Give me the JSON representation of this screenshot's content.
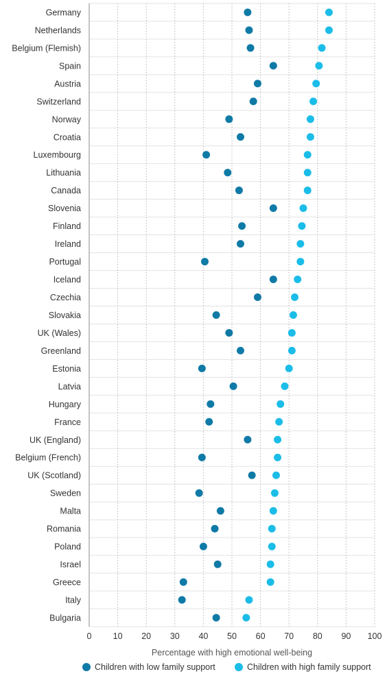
{
  "chart_data": {
    "type": "scatter",
    "orientation": "horizontal-dot-plot",
    "xlabel": "Percentage with high emotional well-being",
    "xlim": [
      0,
      100
    ],
    "xticks": [
      0,
      10,
      20,
      30,
      40,
      50,
      60,
      70,
      80,
      90,
      100
    ],
    "grid": true,
    "legend_position": "bottom",
    "categories": [
      "Germany",
      "Netherlands",
      "Belgium (Flemish)",
      "Spain",
      "Austria",
      "Switzerland",
      "Norway",
      "Croatia",
      "Luxembourg",
      "Lithuania",
      "Canada",
      "Slovenia",
      "Finland",
      "Ireland",
      "Portugal",
      "Iceland",
      "Czechia",
      "Slovakia",
      "UK (Wales)",
      "Greenland",
      "Estonia",
      "Latvia",
      "Hungary",
      "France",
      "UK (England)",
      "Belgium (French)",
      "UK (Scotland)",
      "Sweden",
      "Malta",
      "Romania",
      "Poland",
      "Israel",
      "Greece",
      "Italy",
      "Bulgaria"
    ],
    "series": [
      {
        "name": "Children with low family support",
        "color": "#0f7aa6",
        "values": [
          55.5,
          56,
          56.5,
          64.5,
          59,
          57.5,
          49,
          53,
          41,
          48.5,
          52.5,
          64.5,
          53.5,
          53,
          40.5,
          64.5,
          59,
          44.5,
          49,
          53,
          39.5,
          50.5,
          42.5,
          42,
          55.5,
          39.5,
          57,
          38.5,
          46,
          44,
          40,
          45,
          33,
          32.5,
          44.5
        ]
      },
      {
        "name": "Children with high family support",
        "color": "#1bbde8",
        "values": [
          84,
          84,
          81.5,
          80.5,
          79.5,
          78.5,
          77.5,
          77.5,
          76.5,
          76.5,
          76.5,
          75,
          74.5,
          74,
          74,
          73,
          72,
          71.5,
          71,
          71,
          70,
          68.5,
          67,
          66.5,
          66,
          66,
          65.5,
          65,
          64.5,
          64,
          64,
          63.5,
          63.5,
          56,
          55
        ]
      }
    ]
  }
}
